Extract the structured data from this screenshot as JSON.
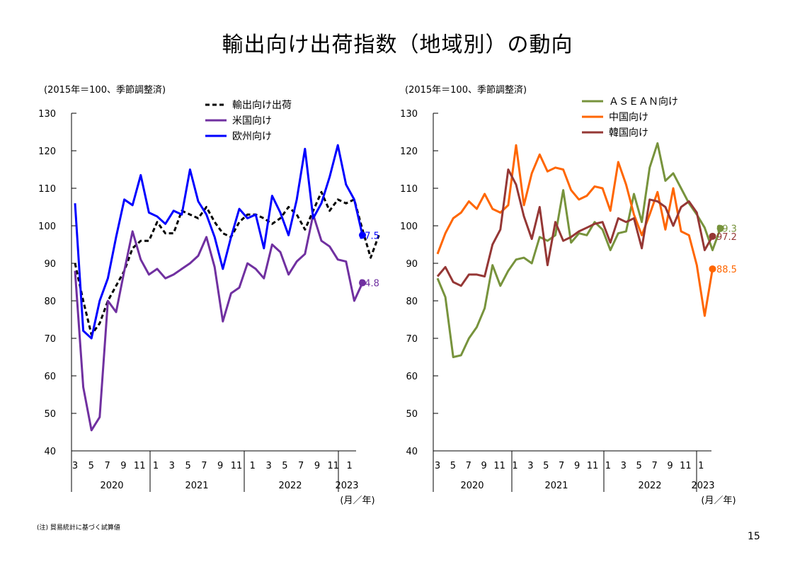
{
  "title": "輸出向け出荷指数（地域別）の動向",
  "note": "(注) 貿易統計に基づく試算値",
  "page_number": "15",
  "chart_data": [
    {
      "type": "line",
      "unit_label": "(2015年＝100、季節調整済)",
      "ylim": [
        40,
        130
      ],
      "yticks": [
        40,
        50,
        60,
        70,
        80,
        90,
        100,
        110,
        120,
        130
      ],
      "month_ticks": [
        "3",
        "5",
        "7",
        "9",
        "11",
        "1",
        "3",
        "5",
        "7",
        "9",
        "11",
        "1",
        "3",
        "5",
        "7",
        "9",
        "11",
        "1"
      ],
      "year_labels": [
        "2020",
        "2021",
        "2022",
        "2023"
      ],
      "axis_unit": "(月／年)",
      "series": [
        {
          "name": "輸出向け出荷",
          "color": "#000000",
          "dashed": true,
          "values": [
            90,
            80,
            71,
            74,
            80,
            84,
            88,
            94,
            96,
            96,
            101,
            98,
            98,
            104,
            103,
            102,
            105,
            101,
            98,
            97,
            101,
            103,
            103,
            102,
            100.5,
            102,
            105,
            103,
            99,
            104,
            109,
            104,
            107,
            106,
            107,
            99,
            91.5,
            97.5
          ],
          "end_label": null
        },
        {
          "name": "米国向け",
          "color": "#7030A0",
          "dashed": false,
          "values": [
            88,
            57,
            45.5,
            49,
            80,
            77,
            88,
            98.5,
            91,
            87,
            88.5,
            86,
            87,
            88.5,
            90,
            92,
            97,
            89,
            74.5,
            82,
            83.5,
            90,
            88.5,
            86,
            95,
            93,
            87,
            90.5,
            92.5,
            103,
            96,
            94.5,
            91,
            90.5,
            80,
            84.8
          ],
          "end_label": "84.8"
        },
        {
          "name": "欧州向け",
          "color": "#0000FF",
          "dashed": false,
          "values": [
            106,
            72,
            70,
            80,
            86,
            97,
            107,
            105.5,
            113.5,
            103.5,
            102.5,
            100.5,
            104,
            103,
            115,
            106.5,
            103,
            97,
            88.5,
            97,
            104.5,
            102,
            103,
            94,
            108,
            103.5,
            97.5,
            107,
            120.5,
            102,
            106,
            113,
            121.5,
            111,
            107,
            97.5
          ],
          "end_label": "97.5"
        }
      ]
    },
    {
      "type": "line",
      "unit_label": "(2015年＝100、季節調整済)",
      "ylim": [
        40,
        130
      ],
      "yticks": [
        40,
        50,
        60,
        70,
        80,
        90,
        100,
        110,
        120,
        130
      ],
      "month_ticks": [
        "3",
        "5",
        "7",
        "9",
        "11",
        "1",
        "3",
        "5",
        "7",
        "9",
        "11",
        "1",
        "3",
        "5",
        "7",
        "9",
        "11",
        "1"
      ],
      "year_labels": [
        "2020",
        "2021",
        "2022",
        "2023"
      ],
      "axis_unit": "(月／年)",
      "series": [
        {
          "name": "ＡＳＥＡＮ向け",
          "color": "#77933C",
          "dashed": false,
          "values": [
            86,
            81,
            65,
            65.5,
            70,
            73,
            78,
            89.5,
            84,
            88,
            91,
            91.5,
            90,
            97,
            96,
            97.5,
            109.5,
            95.5,
            98,
            97.5,
            101,
            99,
            93.5,
            98,
            98.5,
            108.5,
            101,
            115.5,
            122,
            112,
            114,
            110,
            106,
            103,
            99.5,
            93.5,
            99.3
          ],
          "end_label": "99.3"
        },
        {
          "name": "中国向け",
          "color": "#FF6600",
          "dashed": false,
          "values": [
            92.5,
            98,
            102,
            103.5,
            106.5,
            104.5,
            108.5,
            104.5,
            103.5,
            105.5,
            121.5,
            105.5,
            114,
            119,
            114.5,
            115.5,
            115,
            109.5,
            107,
            108,
            110.5,
            110,
            104,
            117,
            111,
            103,
            97.5,
            103,
            109,
            99,
            110,
            98.5,
            97.5,
            89.5,
            76,
            88.5
          ],
          "end_label": "88.5"
        },
        {
          "name": "韓国向け",
          "color": "#953735",
          "dashed": false,
          "values": [
            86.5,
            89,
            85,
            84,
            87,
            87,
            86.5,
            95,
            99,
            115,
            111,
            102.5,
            96.5,
            105,
            89.5,
            101,
            96,
            97,
            98.5,
            99.5,
            100.5,
            101,
            95.5,
            102,
            101,
            102,
            94,
            107,
            106.5,
            105,
            100,
            105,
            106.5,
            103.5,
            93.5,
            97.2
          ],
          "end_label": "97.2"
        }
      ]
    }
  ]
}
